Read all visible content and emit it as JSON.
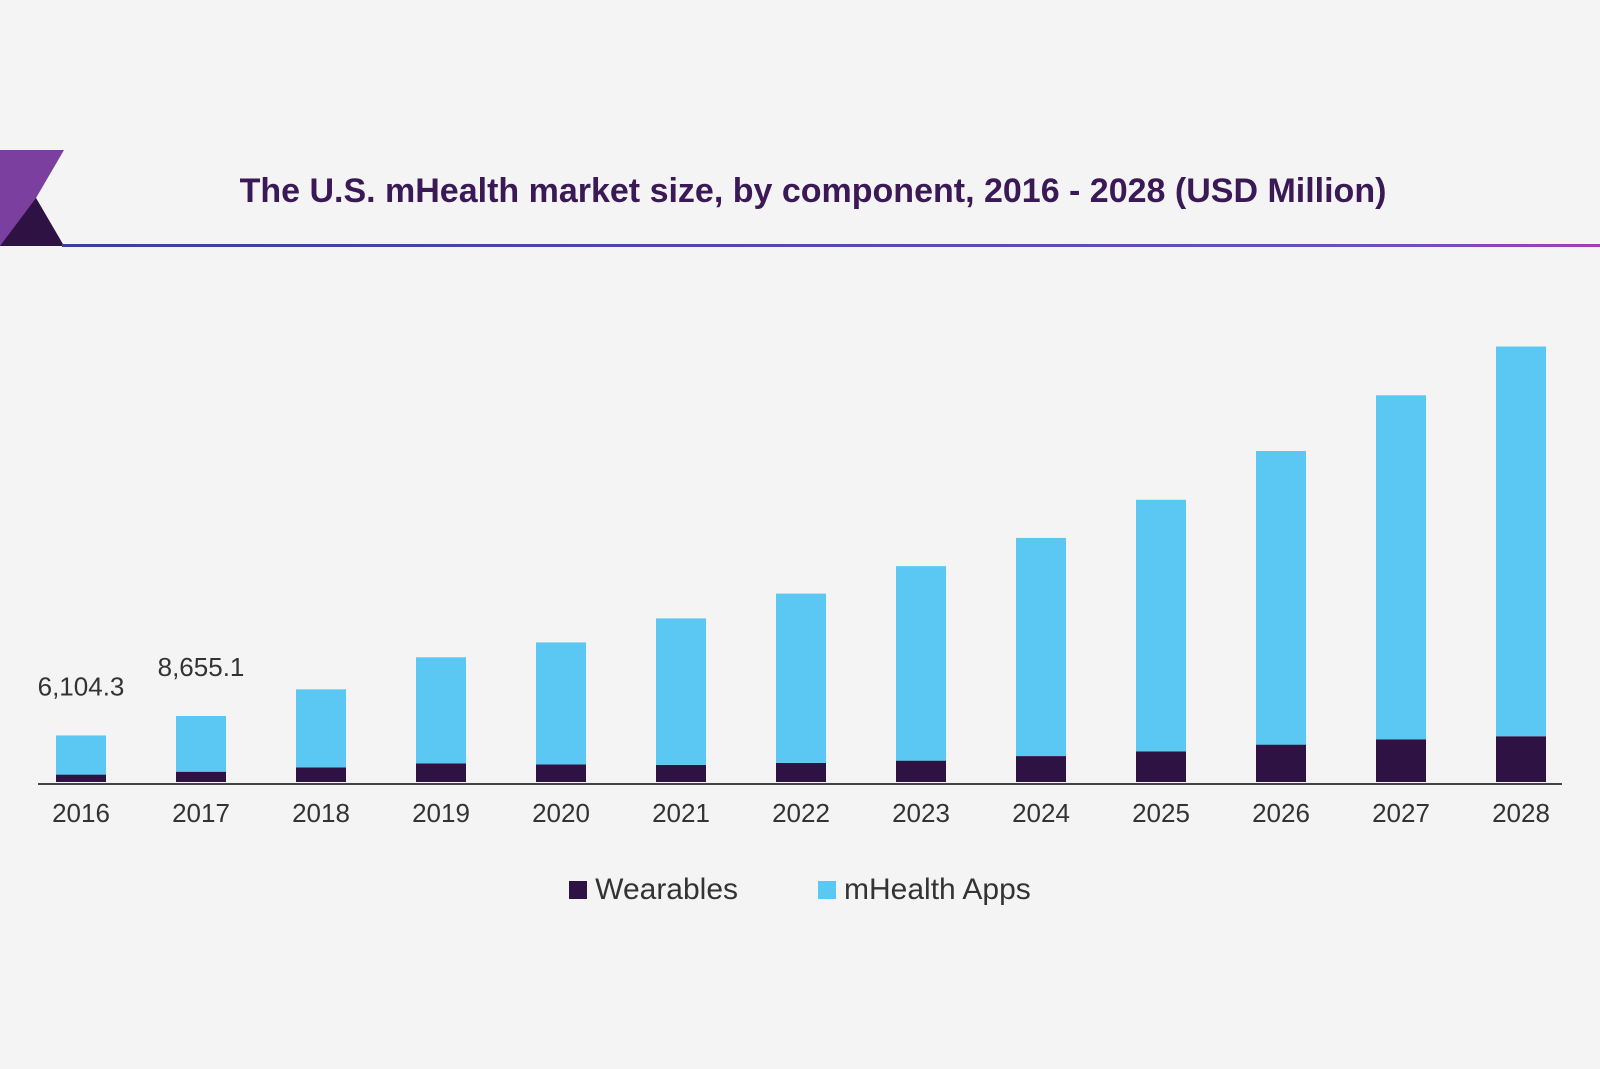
{
  "colors": {
    "background": "#f4f4f4",
    "title": "#3b1856",
    "wearables": "#2e1244",
    "mhealth_apps": "#5bc8f3",
    "axis": "#444444",
    "accent_left": "#7b3fa0",
    "accent_right": "#5b4fc6"
  },
  "chart_data": {
    "type": "bar",
    "stacked": true,
    "title": "The U.S. mHealth market size, by component, 2016 - 2028 (USD Million)",
    "xlabel": "",
    "ylabel": "",
    "categories": [
      "2016",
      "2017",
      "2018",
      "2019",
      "2020",
      "2021",
      "2022",
      "2023",
      "2024",
      "2025",
      "2026",
      "2027",
      "2028"
    ],
    "series": [
      {
        "name": "Wearables",
        "color": "#2e1244",
        "values": [
          970,
          1350,
          1900,
          2450,
          2300,
          2250,
          2500,
          2800,
          3400,
          4000,
          4900,
          5600,
          6000
        ]
      },
      {
        "name": "mHealth Apps",
        "color": "#5bc8f3",
        "values": [
          5134.3,
          7305.1,
          10250,
          13900,
          16000,
          19200,
          22200,
          25500,
          28600,
          33000,
          38500,
          45100,
          51100
        ]
      }
    ],
    "data_labels": [
      {
        "category": "2016",
        "text": "6,104.3"
      },
      {
        "category": "2017",
        "text": "8,655.1"
      }
    ],
    "ylim": [
      0,
      59000
    ],
    "grid": false,
    "legend_position": "bottom-center"
  }
}
